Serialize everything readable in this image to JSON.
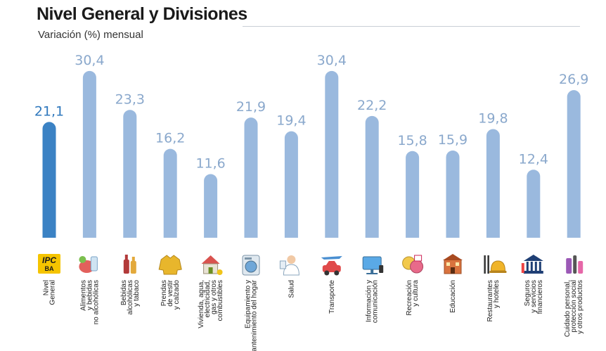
{
  "header": {
    "title": "Nivel General y Divisiones",
    "subtitle": "Variación (%) mensual"
  },
  "colors": {
    "highlight_bar": "#3b82c4",
    "highlight_label": "#2f78bd",
    "bar": "#9ab9de",
    "label": "#8aa8cc"
  },
  "chart_data": {
    "type": "bar",
    "title": "Nivel General y Divisiones",
    "subtitle": "Variación (%) mensual",
    "xlabel": "",
    "ylabel": "",
    "grid": false,
    "legend": "none",
    "categories": [
      [
        "Nivel",
        "General"
      ],
      [
        "Alimentos",
        "y bebidas",
        "no alcohólicas"
      ],
      [
        "Bebidas",
        "alcohólicas",
        "y tabaco"
      ],
      [
        "Prendas",
        "de vestir",
        "y calzado"
      ],
      [
        "Vivienda, agua,",
        "electricidad,",
        "gas y otros",
        "combustibles"
      ],
      [
        "Equipamiento y",
        "mantenimiento del hogar"
      ],
      [
        "Salud"
      ],
      [
        "Transporte"
      ],
      [
        "Información y",
        "comunicación"
      ],
      [
        "Recreación",
        "y cultura"
      ],
      [
        "Educación"
      ],
      [
        "Restaurantes",
        "y hoteles"
      ],
      [
        "Seguros",
        "y servicios",
        "financieros"
      ],
      [
        "Cuidado personal,",
        "protección social",
        "y otros productos"
      ]
    ],
    "values": [
      21.1,
      30.4,
      23.3,
      16.2,
      11.6,
      21.9,
      19.4,
      30.4,
      22.2,
      15.8,
      15.9,
      19.8,
      12.4,
      26.9
    ],
    "value_labels": [
      "21,1",
      "30,4",
      "23,3",
      "16,2",
      "11,6",
      "21,9",
      "19,4",
      "30,4",
      "22,2",
      "15,8",
      "15,9",
      "19,8",
      "12,4",
      "26,9"
    ],
    "highlight_index": 0,
    "ylim": [
      0,
      30.4
    ],
    "icons": [
      "ipc-ba-logo-icon",
      "food-and-beverages-icon",
      "alcohol-bottles-icon",
      "clothing-jacket-icon",
      "house-utilities-icon",
      "washing-machine-icon",
      "doctor-icon",
      "car-and-plane-icon",
      "computer-monitor-icon",
      "theater-masks-icon",
      "school-building-icon",
      "cutlery-dish-icon",
      "bank-building-icon",
      "personal-care-products-icon"
    ],
    "icon_text": {
      "ipc_logo_top": "IPC",
      "ipc_logo_bottom": "BA"
    }
  }
}
